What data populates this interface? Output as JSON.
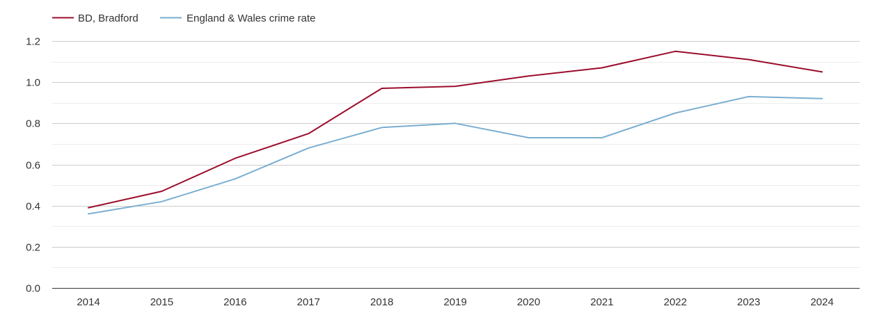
{
  "chart_data": {
    "type": "line",
    "title": "",
    "xlabel": "",
    "ylabel": "",
    "x": [
      "2014",
      "2015",
      "2016",
      "2017",
      "2018",
      "2019",
      "2020",
      "2021",
      "2022",
      "2023",
      "2024"
    ],
    "ylim": [
      0,
      1.2
    ],
    "yticks": [
      "0.0",
      "0.2",
      "0.4",
      "0.6",
      "0.8",
      "1.0",
      "1.2"
    ],
    "ytick_values": [
      0,
      0.2,
      0.4,
      0.6,
      0.8,
      1.0,
      1.2
    ],
    "grid": true,
    "legend_position": "top-left",
    "series": [
      {
        "name": "BD, Bradford",
        "color": "#9b0c2c",
        "values": [
          0.39,
          0.47,
          0.63,
          0.75,
          0.97,
          0.98,
          1.03,
          1.07,
          1.15,
          1.11,
          1.05
        ]
      },
      {
        "name": "England & Wales crime rate",
        "color": "#7aaed0",
        "values": [
          0.36,
          0.42,
          0.53,
          0.68,
          0.78,
          0.8,
          0.73,
          0.73,
          0.85,
          0.93,
          0.92
        ]
      }
    ]
  }
}
